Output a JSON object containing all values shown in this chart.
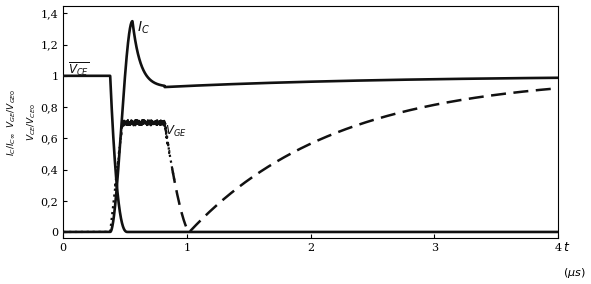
{
  "xlim": [
    0,
    4
  ],
  "ylim": [
    -0.04,
    1.45
  ],
  "yticks": [
    0,
    0.2,
    0.4,
    0.6,
    0.8,
    1.0,
    1.2,
    1.4
  ],
  "ytick_labels": [
    "0",
    "0,2",
    "0,4",
    "0,6",
    "0,8",
    "1",
    "1,2",
    "1,4"
  ],
  "xticks": [
    0,
    1,
    2,
    3,
    4
  ],
  "line_color": "#111111",
  "xlabel": "t",
  "xlabel_unit": "(μs)"
}
